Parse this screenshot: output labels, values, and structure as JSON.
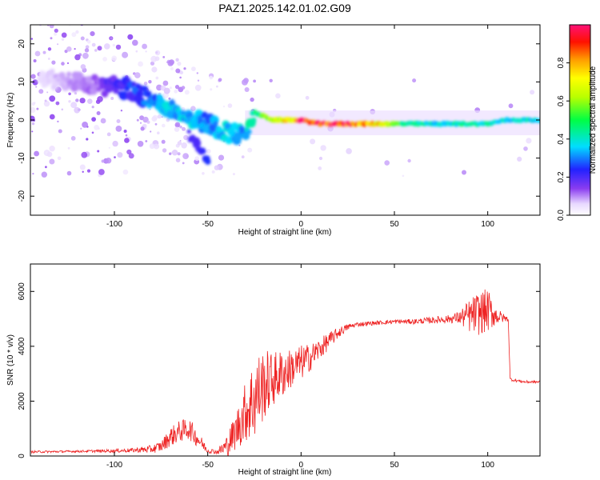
{
  "title": "PAZ1.2025.142.01.02.G09",
  "chart_data": [
    {
      "type": "heatmap",
      "xlabel": "Height of straight line (km)",
      "ylabel": "Frequency (Hz)",
      "xlim": [
        -145,
        128
      ],
      "ylim": [
        -25,
        25
      ],
      "xticks": [
        -100,
        -50,
        0,
        50,
        100
      ],
      "yticks": [
        -20,
        -10,
        0,
        10,
        20
      ],
      "colorbar": {
        "label": "Normalized spectral amplitude",
        "range": [
          0,
          1
        ],
        "ticks": [
          "0.0",
          "0.2",
          "0.4",
          "0.6",
          "0.8"
        ],
        "tick_values": [
          0.0,
          0.2,
          0.4,
          0.6,
          0.8
        ],
        "colormap": "rainbow (white-violet-blue-cyan-green-yellow-orange-red-magenta)"
      },
      "ridge": {
        "x": [
          -140,
          -130,
          -120,
          -110,
          -100,
          -90,
          -80,
          -70,
          -60,
          -50,
          -40,
          -30,
          -25,
          -20,
          -15,
          -10,
          -5,
          0,
          10,
          20,
          30,
          40,
          50,
          60,
          70,
          80,
          90,
          100,
          110,
          120,
          128
        ],
        "frequency": [
          10,
          11,
          10,
          9,
          9,
          8,
          5,
          3,
          1,
          -1,
          -3,
          -4,
          2,
          1,
          0,
          0,
          0,
          0,
          -1,
          -1,
          -1,
          -1,
          -1,
          -1,
          -1,
          -1,
          -1,
          -1,
          0,
          0,
          0
        ],
        "amplitude": [
          0.05,
          0.08,
          0.1,
          0.12,
          0.2,
          0.25,
          0.3,
          0.35,
          0.35,
          0.3,
          0.35,
          0.35,
          0.45,
          0.55,
          0.6,
          0.7,
          0.8,
          0.9,
          0.98,
          0.95,
          0.85,
          0.75,
          0.55,
          0.45,
          0.4,
          0.4,
          0.45,
          0.42,
          0.4,
          0.4,
          0.4
        ]
      },
      "branch": {
        "x": [
          -60,
          -55,
          -50
        ],
        "frequency": [
          -4,
          -7,
          -10
        ],
        "amplitude": [
          0.2,
          0.2,
          0.25
        ]
      }
    },
    {
      "type": "line",
      "xlabel": "Height of straight line (km)",
      "ylabel": "SNR (10 * v/v)",
      "xlim": [
        -145,
        128
      ],
      "ylim": [
        0,
        7000
      ],
      "xticks": [
        -100,
        -50,
        0,
        50,
        100
      ],
      "yticks": [
        0,
        2000,
        4000,
        6000
      ],
      "series": [
        {
          "color": "#ee2222",
          "x": [
            -145,
            -130,
            -120,
            -110,
            -100,
            -90,
            -80,
            -75,
            -70,
            -65,
            -60,
            -55,
            -50,
            -45,
            -40,
            -35,
            -30,
            -25,
            -20,
            -15,
            -10,
            -5,
            0,
            5,
            10,
            15,
            20,
            25,
            30,
            40,
            50,
            60,
            70,
            80,
            85,
            90,
            95,
            100,
            105,
            110,
            111,
            112,
            115,
            120,
            128
          ],
          "y": [
            150,
            160,
            170,
            180,
            190,
            210,
            250,
            350,
            700,
            900,
            1000,
            600,
            200,
            150,
            350,
            900,
            1600,
            2100,
            2600,
            2800,
            3000,
            3200,
            3400,
            3600,
            3900,
            4200,
            4500,
            4700,
            4800,
            4850,
            4900,
            4900,
            4950,
            5000,
            5050,
            5100,
            5200,
            5300,
            5100,
            5000,
            5000,
            2800,
            2750,
            2700,
            2700
          ],
          "spread": [
            40,
            40,
            40,
            50,
            60,
            80,
            150,
            200,
            350,
            400,
            400,
            300,
            100,
            80,
            400,
            700,
            1100,
            1600,
            1300,
            1000,
            900,
            700,
            650,
            500,
            400,
            300,
            200,
            120,
            80,
            80,
            80,
            90,
            120,
            150,
            250,
            600,
            800,
            800,
            300,
            100,
            100,
            60,
            50,
            50,
            50
          ]
        }
      ]
    }
  ],
  "colors": {
    "frame": "#000000",
    "background": "#ffffff",
    "snr_line": "#ee2222"
  }
}
